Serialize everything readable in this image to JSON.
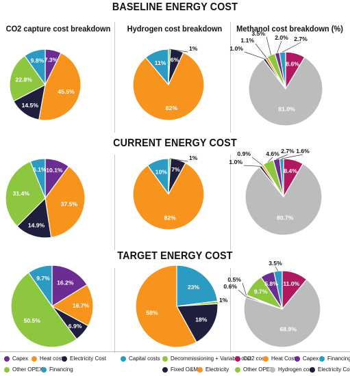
{
  "titles": {
    "baseline": "BASELINE ENERGY COST",
    "current": "CURRENT ENERGY COST",
    "target": "TARGET ENERGY COST"
  },
  "columns": {
    "co2": "CO2 capture cost breakdown",
    "h2": "Hydrogen cost breakdown",
    "meoh": "Methanol cost breakdown (%)"
  },
  "legends": {
    "co2": [
      "Capex",
      "Heat cost",
      "Electricity Cost",
      "Other OPEX",
      "Financing"
    ],
    "h2": [
      "Capital costs",
      "Decommissioning + Variable cost",
      "Fixed O&M",
      "Electricity"
    ],
    "meoh": [
      "CO2 cost",
      "Heat Cost",
      "Capex",
      "Financing",
      "Other OPEX",
      "Hydrogen cost",
      "Electricity Cost"
    ]
  },
  "colors": {
    "purple": "#6b2d91",
    "orange": "#f7941d",
    "navy": "#1f1f3d",
    "green": "#8dc63f",
    "teal": "#2b9bc4",
    "magenta": "#b0185f",
    "gray": "#bcbcbc"
  },
  "chart_data": [
    {
      "type": "pie",
      "row": "baseline",
      "col": "co2",
      "labels": [
        "Capex",
        "Heat cost",
        "Electricity Cost",
        "Other OPEX",
        "Financing"
      ],
      "values": [
        7.3,
        45.5,
        14.5,
        22.8,
        9.8
      ],
      "display": [
        "7.3%",
        "45.5%",
        "14.5%",
        "22.8%",
        "9.8%"
      ]
    },
    {
      "type": "pie",
      "row": "baseline",
      "col": "h2",
      "labels": [
        "Capital costs",
        "Decommissioning + Variable cost",
        "Fixed O&M",
        "Electricity"
      ],
      "values": [
        11,
        1,
        6,
        82
      ],
      "display": [
        "11%",
        "1%",
        "6%",
        "82%"
      ]
    },
    {
      "type": "pie",
      "row": "baseline",
      "col": "meoh",
      "labels": [
        "CO2 cost",
        "Hydrogen cost",
        "Electricity Cost",
        "Heat Cost",
        "Other OPEX",
        "Capex",
        "Financing"
      ],
      "values": [
        8.6,
        81.0,
        1.0,
        1.1,
        3.5,
        2.0,
        2.7
      ],
      "display": [
        "8.6%",
        "81.0%",
        "1.0%",
        "1.1%",
        "3.5%",
        "2.0%",
        "2.7%"
      ]
    },
    {
      "type": "pie",
      "row": "current",
      "col": "co2",
      "labels": [
        "Capex",
        "Heat cost",
        "Electricity Cost",
        "Other OPEX",
        "Financing"
      ],
      "values": [
        10.1,
        37.5,
        14.9,
        31.4,
        6.1
      ],
      "display": [
        "10.1%",
        "37.5%",
        "14.9%",
        "31.4%",
        "6.1%"
      ]
    },
    {
      "type": "pie",
      "row": "current",
      "col": "h2",
      "labels": [
        "Capital costs",
        "Decommissioning + Variable cost",
        "Fixed O&M",
        "Electricity"
      ],
      "values": [
        10,
        1,
        7,
        82
      ],
      "display": [
        "10%",
        "1%",
        "7%",
        "82%"
      ]
    },
    {
      "type": "pie",
      "row": "current",
      "col": "meoh",
      "labels": [
        "CO2 cost",
        "Hydrogen cost",
        "Electricity Cost",
        "Heat Cost",
        "Other OPEX",
        "Capex",
        "Financing"
      ],
      "values": [
        8.4,
        80.7,
        1.0,
        0.9,
        4.6,
        2.7,
        1.6
      ],
      "display": [
        "8.4%",
        "80.7%",
        "1.0%",
        "0.9%",
        "4.6%",
        "2.7%",
        "1.6%"
      ]
    },
    {
      "type": "pie",
      "row": "target",
      "col": "co2",
      "labels": [
        "Capex",
        "Heat cost",
        "Electricity Cost",
        "Other OPEX",
        "Financing"
      ],
      "values": [
        16.2,
        16.7,
        6.9,
        50.5,
        9.7
      ],
      "display": [
        "16.2%",
        "16.7%",
        "6.9%",
        "50.5%",
        "9.7%"
      ]
    },
    {
      "type": "pie",
      "row": "target",
      "col": "h2",
      "labels": [
        "Capital costs",
        "Decommissioning + Variable cost",
        "Fixed O&M",
        "Electricity"
      ],
      "values": [
        23,
        1,
        18,
        58
      ],
      "display": [
        "23%",
        "1%",
        "18%",
        "58%"
      ]
    },
    {
      "type": "pie",
      "row": "target",
      "col": "meoh",
      "labels": [
        "CO2 cost",
        "Hydrogen cost",
        "Electricity Cost",
        "Heat Cost",
        "Other OPEX",
        "Capex",
        "Financing"
      ],
      "values": [
        11.0,
        68.9,
        0.6,
        0.5,
        9.7,
        5.8,
        3.5
      ],
      "display": [
        "11.0%",
        "68.9%",
        "0.6%",
        "0.5%",
        "9.7%",
        "5.8%",
        "3.5%"
      ]
    }
  ]
}
